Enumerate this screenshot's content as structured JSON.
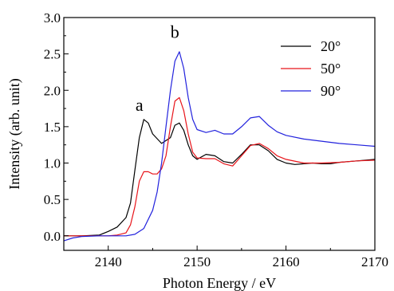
{
  "chart_data": {
    "type": "line",
    "xlabel": "Photon Energy / eV",
    "ylabel": "Intensity (arb. unit)",
    "xlim": [
      2135,
      2170
    ],
    "ylim": [
      -0.2,
      3.0
    ],
    "x_ticks": [
      2140,
      2150,
      2160,
      2170
    ],
    "x_tick_labels": [
      "2140",
      "2150",
      "2160",
      "2170"
    ],
    "y_ticks": [
      0.0,
      0.5,
      1.0,
      1.5,
      2.0,
      2.5,
      3.0
    ],
    "y_tick_labels": [
      "0.0",
      "0.5",
      "1.0",
      "1.5",
      "2.0",
      "2.5",
      "3.0"
    ],
    "legend_position": "top-right",
    "grid": false,
    "annotations": [
      {
        "text": "a",
        "x": 2143.5,
        "y": 1.72
      },
      {
        "text": "b",
        "x": 2147.5,
        "y": 2.72
      }
    ],
    "series": [
      {
        "name": "20°",
        "color": "#000000",
        "x": [
          2135,
          2137,
          2139,
          2140,
          2141,
          2142,
          2142.5,
          2143,
          2143.5,
          2144,
          2144.5,
          2145,
          2146,
          2147,
          2147.5,
          2148,
          2148.5,
          2149,
          2149.5,
          2150,
          2151,
          2152,
          2153,
          2154,
          2155,
          2156,
          2157,
          2158,
          2159,
          2160,
          2161,
          2162,
          2163,
          2164,
          2165,
          2166,
          2167,
          2168,
          2169,
          2170
        ],
        "y": [
          0.0,
          0.0,
          0.01,
          0.06,
          0.12,
          0.25,
          0.45,
          0.9,
          1.35,
          1.6,
          1.55,
          1.4,
          1.27,
          1.35,
          1.52,
          1.55,
          1.45,
          1.25,
          1.1,
          1.05,
          1.12,
          1.1,
          1.02,
          1.0,
          1.12,
          1.25,
          1.25,
          1.17,
          1.05,
          1.0,
          0.98,
          0.99,
          1.0,
          0.99,
          0.99,
          1.01,
          1.02,
          1.03,
          1.04,
          1.05
        ]
      },
      {
        "name": "50°",
        "color": "#e8141a",
        "x": [
          2135,
          2137,
          2140,
          2141,
          2142,
          2142.5,
          2143,
          2143.5,
          2144,
          2144.5,
          2145,
          2145.5,
          2146,
          2146.5,
          2147,
          2147.5,
          2148,
          2148.5,
          2149,
          2149.5,
          2150,
          2151,
          2152,
          2153,
          2154,
          2155,
          2156,
          2157,
          2158,
          2159,
          2160,
          2162,
          2164,
          2166,
          2168,
          2170
        ],
        "y": [
          0.0,
          0.0,
          0.0,
          0.01,
          0.04,
          0.15,
          0.4,
          0.75,
          0.88,
          0.88,
          0.85,
          0.85,
          0.92,
          1.1,
          1.5,
          1.85,
          1.9,
          1.72,
          1.4,
          1.15,
          1.07,
          1.06,
          1.06,
          0.99,
          0.96,
          1.1,
          1.24,
          1.27,
          1.2,
          1.1,
          1.05,
          1.0,
          1.0,
          1.01,
          1.03,
          1.04
        ]
      },
      {
        "name": "90°",
        "color": "#2222dd",
        "x": [
          2135,
          2136,
          2137,
          2139,
          2140,
          2141,
          2142,
          2143,
          2144,
          2145,
          2145.5,
          2146,
          2146.5,
          2147,
          2147.5,
          2148,
          2148.5,
          2149,
          2149.5,
          2150,
          2151,
          2152,
          2153,
          2154,
          2155,
          2156,
          2157,
          2158,
          2159,
          2160,
          2162,
          2164,
          2166,
          2168,
          2170
        ],
        "y": [
          -0.07,
          -0.03,
          -0.01,
          0.0,
          0.0,
          0.0,
          0.0,
          0.02,
          0.1,
          0.35,
          0.6,
          1.0,
          1.5,
          2.0,
          2.4,
          2.53,
          2.3,
          1.9,
          1.6,
          1.46,
          1.42,
          1.45,
          1.4,
          1.4,
          1.5,
          1.62,
          1.64,
          1.52,
          1.43,
          1.38,
          1.33,
          1.3,
          1.27,
          1.25,
          1.23
        ]
      }
    ]
  }
}
